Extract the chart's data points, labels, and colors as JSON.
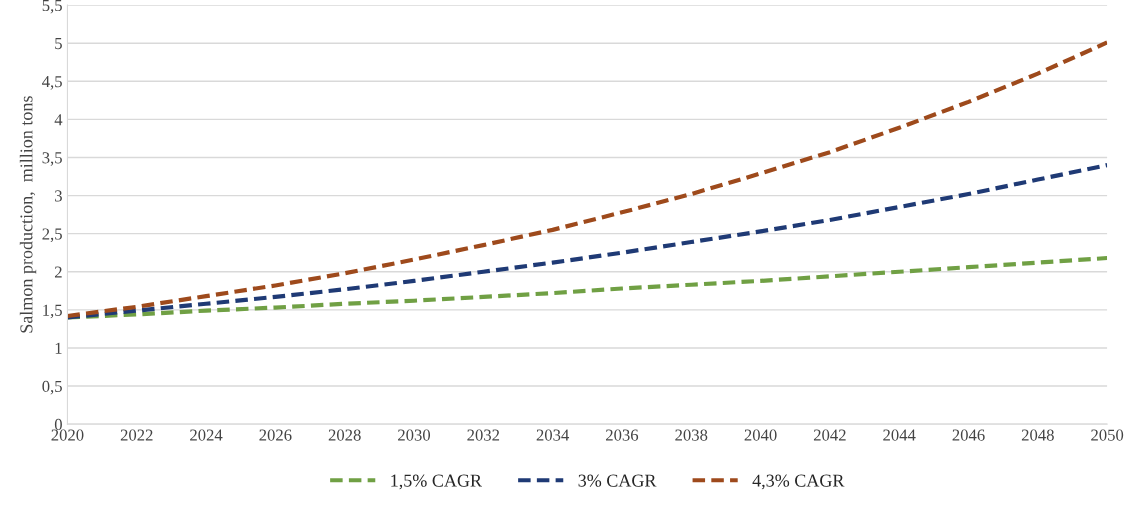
{
  "chart_data": {
    "type": "line",
    "ylabel": "Salmon production,  million tons",
    "x": [
      2020,
      2022,
      2024,
      2026,
      2028,
      2030,
      2032,
      2034,
      2036,
      2038,
      2040,
      2042,
      2044,
      2046,
      2048,
      2050
    ],
    "series": [
      {
        "name": "1,5% CAGR",
        "color": "#70a044",
        "values": [
          1.4,
          1.44,
          1.49,
          1.53,
          1.58,
          1.62,
          1.67,
          1.72,
          1.78,
          1.83,
          1.88,
          1.94,
          2.0,
          2.06,
          2.12,
          2.18
        ]
      },
      {
        "name": "3% CAGR",
        "color": "#1f3a75",
        "values": [
          1.4,
          1.49,
          1.58,
          1.67,
          1.77,
          1.88,
          2.0,
          2.12,
          2.25,
          2.39,
          2.53,
          2.68,
          2.85,
          3.02,
          3.21,
          3.4
        ]
      },
      {
        "name": "4,3% CAGR",
        "color": "#9e4a1c",
        "values": [
          1.42,
          1.54,
          1.68,
          1.82,
          1.98,
          2.16,
          2.35,
          2.55,
          2.78,
          3.02,
          3.29,
          3.57,
          3.89,
          4.23,
          4.6,
          5.01
        ]
      }
    ],
    "xlim": [
      2020,
      2050
    ],
    "xticks": [
      2020,
      2022,
      2024,
      2026,
      2028,
      2030,
      2032,
      2034,
      2036,
      2038,
      2040,
      2042,
      2044,
      2046,
      2048,
      2050
    ],
    "ylim": [
      0,
      5.5
    ],
    "yticks": [
      0,
      {
        "value": 0.5,
        "label": "0,5"
      },
      1,
      {
        "value": 1.5,
        "label": "1,5"
      },
      2,
      {
        "value": 2.5,
        "label": "2,5"
      },
      3,
      {
        "value": 3.5,
        "label": "3,5"
      },
      4,
      {
        "value": 4.5,
        "label": "4,5"
      },
      5,
      {
        "value": 5.5,
        "label": "5,5"
      }
    ],
    "grid": "y",
    "legend": "bottom",
    "line_style": "dashed",
    "marker": "none"
  }
}
